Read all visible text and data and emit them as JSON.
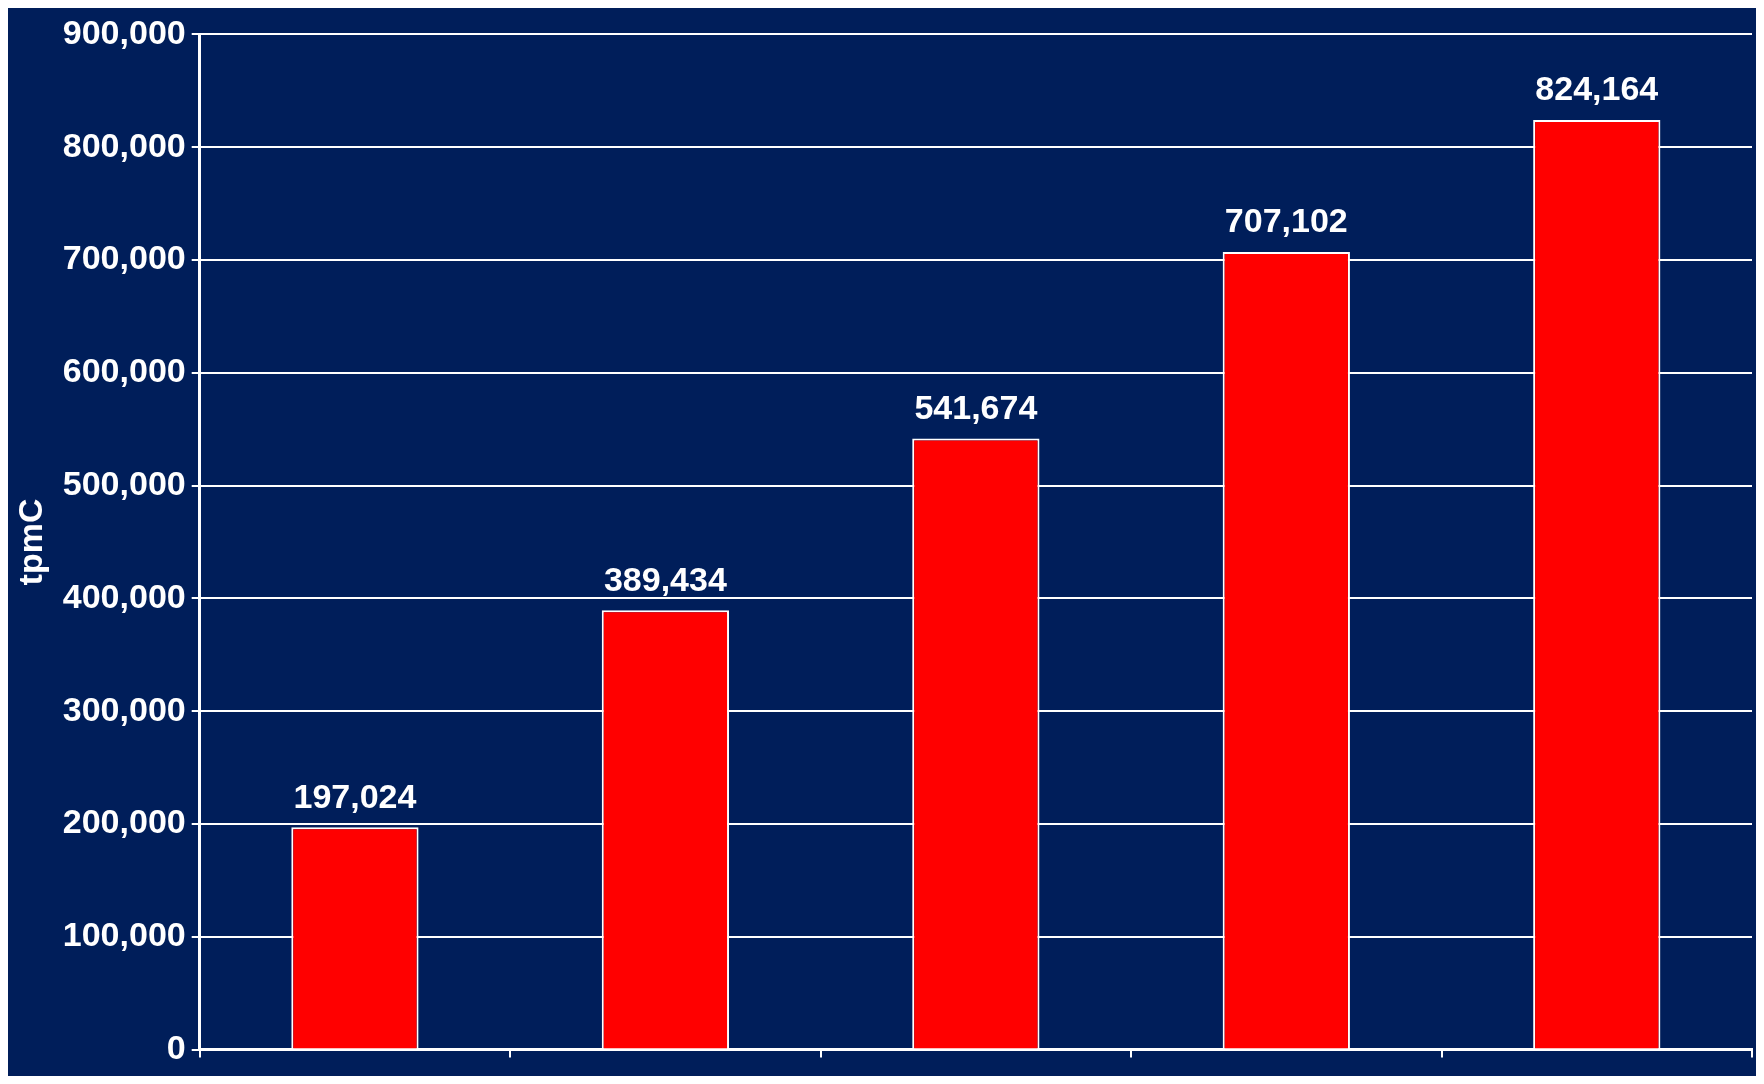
{
  "chart_data": {
    "type": "bar",
    "ylabel": "tpmC",
    "categories": [
      null,
      null,
      null,
      null,
      null
    ],
    "values": [
      197024,
      389434,
      541674,
      707102,
      824164
    ],
    "color": "#ff0000",
    "ylim": [
      0,
      900000
    ],
    "yticks": [
      {
        "value": 0,
        "label": "0"
      },
      {
        "value": 100000,
        "label": "100,000"
      },
      {
        "value": 200000,
        "label": "200,000"
      },
      {
        "value": 300000,
        "label": "300,000"
      },
      {
        "value": 400000,
        "label": "400,000"
      },
      {
        "value": 500000,
        "label": "500,000"
      },
      {
        "value": 600000,
        "label": "600,000"
      },
      {
        "value": 700000,
        "label": "700,000"
      },
      {
        "value": 800000,
        "label": "800,000"
      },
      {
        "value": 900000,
        "label": "900,000"
      }
    ],
    "value_labels": [
      "197,024",
      "389,434",
      "541,674",
      "707,102",
      "824,164"
    ],
    "grid": "y",
    "legend": false
  }
}
